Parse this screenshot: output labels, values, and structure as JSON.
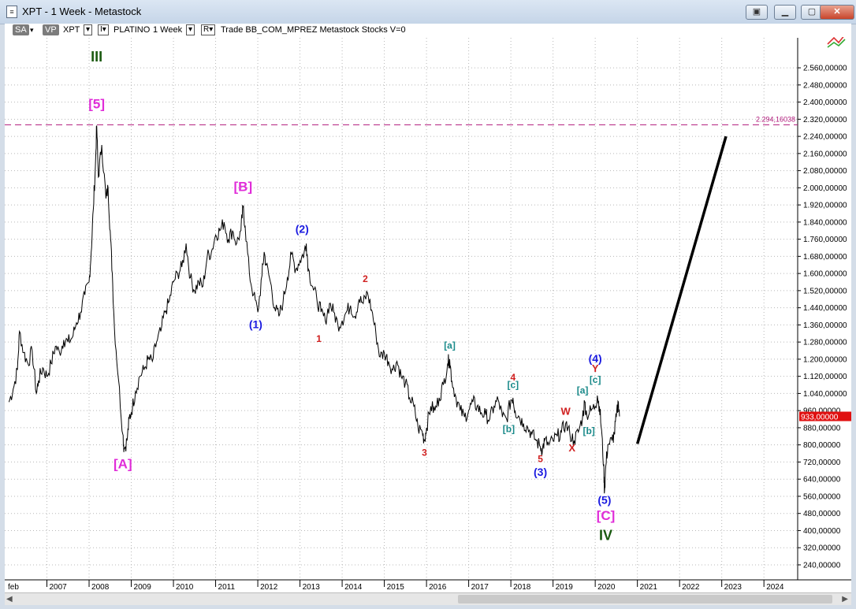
{
  "window": {
    "title": "XPT - 1 Week - Metastock",
    "app_icon": "document-icon",
    "buttons": [
      "restore-icon",
      "minimize-icon",
      "maximize-icon",
      "close-icon"
    ]
  },
  "toolbar": {
    "sa": "SA",
    "vp": "VP",
    "symbol": "XPT",
    "name": "PLATINO",
    "period": "1 Week",
    "r_label": "R",
    "rest": "Trade  BB_COM_MPREZ  Metastock  Stocks  V=0"
  },
  "chart_data": {
    "type": "line",
    "x_labels": [
      "feb",
      "2007",
      "2008",
      "2009",
      "2010",
      "2011",
      "2012",
      "2013",
      "2014",
      "2015",
      "2016",
      "2017",
      "2018",
      "2019",
      "2020",
      "2021",
      "2022",
      "2023",
      "2024"
    ],
    "xlim": [
      2006.0,
      2024.8
    ],
    "ylim": [
      170,
      2700
    ],
    "y_ticks": [
      240,
      320,
      400,
      480,
      560,
      640,
      720,
      800,
      880,
      960,
      1040,
      1120,
      1200,
      1280,
      1360,
      1440,
      1520,
      1600,
      1680,
      1760,
      1840,
      1920,
      2000,
      2080,
      2160,
      2240,
      2320,
      2400,
      2480,
      2560
    ],
    "y_tick_labels": [
      "240,00000",
      "320,00000",
      "400,00000",
      "480,00000",
      "560,00000",
      "640,00000",
      "720,00000",
      "800,00000",
      "880,00000",
      "960,00000",
      "1.040,00000",
      "1.120,00000",
      "1.200,00000",
      "1.280,00000",
      "1.360,00000",
      "1.440,00000",
      "1.520,00000",
      "1.600,00000",
      "1.680,00000",
      "1.760,00000",
      "1.840,00000",
      "2.000,00000",
      "2.080,00000",
      "2.160,00000",
      "2.240,00000",
      "2.320,00000",
      "2.400,00000",
      "2.480,00000",
      "2.560,00000"
    ],
    "y_tick_labels_full": [
      "240,00000",
      "320,00000",
      "400,00000",
      "480,00000",
      "560,00000",
      "640,00000",
      "720,00000",
      "800,00000",
      "880,00000",
      "960,00000",
      "1.040,00000",
      "1.120,00000",
      "1.200,00000",
      "1.280,00000",
      "1.360,00000",
      "1.440,00000",
      "1.520,00000",
      "1.600,00000",
      "1.680,00000",
      "1.760,00000",
      "1.840,00000",
      "1.920,00000",
      "2.000,00000",
      "2.080,00000",
      "2.160,00000",
      "2.240,00000",
      "2.320,00000",
      "2.400,00000",
      "2.480,00000",
      "2.560,00000"
    ],
    "grid": true,
    "series": [
      {
        "values": [
          [
            2006.1,
            1000
          ],
          [
            2006.2,
            1060
          ],
          [
            2006.3,
            1150
          ],
          [
            2006.35,
            1330
          ],
          [
            2006.45,
            1230
          ],
          [
            2006.55,
            1180
          ],
          [
            2006.65,
            1240
          ],
          [
            2006.75,
            1040
          ],
          [
            2006.8,
            1100
          ],
          [
            2006.9,
            1160
          ],
          [
            2007.0,
            1120
          ],
          [
            2007.1,
            1180
          ],
          [
            2007.2,
            1260
          ],
          [
            2007.3,
            1230
          ],
          [
            2007.4,
            1290
          ],
          [
            2007.5,
            1280
          ],
          [
            2007.6,
            1300
          ],
          [
            2007.7,
            1370
          ],
          [
            2007.8,
            1420
          ],
          [
            2007.9,
            1500
          ],
          [
            2008.0,
            1560
          ],
          [
            2008.05,
            1700
          ],
          [
            2008.1,
            1900
          ],
          [
            2008.15,
            2100
          ],
          [
            2008.18,
            2290
          ],
          [
            2008.22,
            2050
          ],
          [
            2008.3,
            2200
          ],
          [
            2008.4,
            1950
          ],
          [
            2008.45,
            2000
          ],
          [
            2008.5,
            1800
          ],
          [
            2008.55,
            1600
          ],
          [
            2008.6,
            1350
          ],
          [
            2008.7,
            1100
          ],
          [
            2008.8,
            850
          ],
          [
            2008.83,
            780
          ],
          [
            2008.9,
            820
          ],
          [
            2008.95,
            920
          ],
          [
            2009.0,
            950
          ],
          [
            2009.1,
            1050
          ],
          [
            2009.2,
            1120
          ],
          [
            2009.3,
            1150
          ],
          [
            2009.4,
            1200
          ],
          [
            2009.5,
            1190
          ],
          [
            2009.6,
            1280
          ],
          [
            2009.7,
            1330
          ],
          [
            2009.8,
            1420
          ],
          [
            2009.9,
            1470
          ],
          [
            2010.0,
            1560
          ],
          [
            2010.1,
            1600
          ],
          [
            2010.2,
            1630
          ],
          [
            2010.3,
            1740
          ],
          [
            2010.4,
            1580
          ],
          [
            2010.5,
            1520
          ],
          [
            2010.6,
            1560
          ],
          [
            2010.7,
            1540
          ],
          [
            2010.8,
            1680
          ],
          [
            2010.9,
            1700
          ],
          [
            2011.0,
            1780
          ],
          [
            2011.1,
            1800
          ],
          [
            2011.2,
            1840
          ],
          [
            2011.3,
            1760
          ],
          [
            2011.4,
            1800
          ],
          [
            2011.5,
            1740
          ],
          [
            2011.6,
            1800
          ],
          [
            2011.65,
            1910
          ],
          [
            2011.7,
            1820
          ],
          [
            2011.8,
            1600
          ],
          [
            2011.9,
            1500
          ],
          [
            2012.0,
            1420
          ],
          [
            2012.1,
            1590
          ],
          [
            2012.15,
            1700
          ],
          [
            2012.2,
            1640
          ],
          [
            2012.3,
            1560
          ],
          [
            2012.4,
            1440
          ],
          [
            2012.5,
            1400
          ],
          [
            2012.6,
            1470
          ],
          [
            2012.7,
            1580
          ],
          [
            2012.8,
            1690
          ],
          [
            2012.9,
            1620
          ],
          [
            2013.0,
            1660
          ],
          [
            2013.1,
            1700
          ],
          [
            2013.15,
            1740
          ],
          [
            2013.2,
            1620
          ],
          [
            2013.3,
            1540
          ],
          [
            2013.4,
            1480
          ],
          [
            2013.5,
            1420
          ],
          [
            2013.6,
            1380
          ],
          [
            2013.7,
            1460
          ],
          [
            2013.8,
            1420
          ],
          [
            2013.9,
            1360
          ],
          [
            2014.0,
            1380
          ],
          [
            2014.1,
            1420
          ],
          [
            2014.2,
            1450
          ],
          [
            2014.3,
            1400
          ],
          [
            2014.4,
            1480
          ],
          [
            2014.5,
            1460
          ],
          [
            2014.6,
            1510
          ],
          [
            2014.7,
            1430
          ],
          [
            2014.8,
            1320
          ],
          [
            2014.9,
            1210
          ],
          [
            2015.0,
            1230
          ],
          [
            2015.1,
            1190
          ],
          [
            2015.2,
            1150
          ],
          [
            2015.3,
            1190
          ],
          [
            2015.4,
            1120
          ],
          [
            2015.5,
            1090
          ],
          [
            2015.6,
            1020
          ],
          [
            2015.7,
            980
          ],
          [
            2015.8,
            880
          ],
          [
            2015.9,
            860
          ],
          [
            2015.95,
            820
          ],
          [
            2016.0,
            880
          ],
          [
            2016.1,
            980
          ],
          [
            2016.2,
            960
          ],
          [
            2016.3,
            1020
          ],
          [
            2016.4,
            1080
          ],
          [
            2016.5,
            1180
          ],
          [
            2016.55,
            1200
          ],
          [
            2016.6,
            1100
          ],
          [
            2016.7,
            1020
          ],
          [
            2016.8,
            960
          ],
          [
            2016.9,
            930
          ],
          [
            2017.0,
            960
          ],
          [
            2017.1,
            1000
          ],
          [
            2017.2,
            980
          ],
          [
            2017.3,
            950
          ],
          [
            2017.4,
            940
          ],
          [
            2017.5,
            920
          ],
          [
            2017.6,
            980
          ],
          [
            2017.7,
            1010
          ],
          [
            2017.8,
            930
          ],
          [
            2017.9,
            920
          ],
          [
            2018.0,
            1010
          ],
          [
            2018.05,
            1020
          ],
          [
            2018.1,
            960
          ],
          [
            2018.2,
            930
          ],
          [
            2018.3,
            900
          ],
          [
            2018.4,
            880
          ],
          [
            2018.5,
            850
          ],
          [
            2018.6,
            820
          ],
          [
            2018.7,
            790
          ],
          [
            2018.75,
            780
          ],
          [
            2018.8,
            820
          ],
          [
            2018.9,
            800
          ],
          [
            2019.0,
            820
          ],
          [
            2019.1,
            840
          ],
          [
            2019.2,
            860
          ],
          [
            2019.3,
            900
          ],
          [
            2019.4,
            850
          ],
          [
            2019.5,
            820
          ],
          [
            2019.6,
            860
          ],
          [
            2019.7,
            930
          ],
          [
            2019.75,
            1000
          ],
          [
            2019.8,
            940
          ],
          [
            2019.9,
            960
          ],
          [
            2020.0,
            980
          ],
          [
            2020.05,
            1030
          ],
          [
            2020.1,
            980
          ],
          [
            2020.15,
            870
          ],
          [
            2020.2,
            700
          ],
          [
            2020.22,
            580
          ],
          [
            2020.25,
            700
          ],
          [
            2020.3,
            800
          ],
          [
            2020.4,
            820
          ],
          [
            2020.45,
            850
          ],
          [
            2020.5,
            930
          ],
          [
            2020.55,
            1000
          ],
          [
            2020.58,
            933
          ]
        ]
      }
    ],
    "projection": {
      "from": [
        2021.0,
        805
      ],
      "to": [
        2023.1,
        2240
      ]
    },
    "reference_line": {
      "value": 2294.16038,
      "label": "2.294,16038",
      "color": "#b0187a"
    },
    "last_price": {
      "value": 933,
      "label": "933,00000",
      "color": "#e01010"
    },
    "annotations": [
      {
        "text": "III",
        "x": 2008.18,
        "y": 2590,
        "color": "#1a5a10",
        "size": 18
      },
      {
        "text": "[5]",
        "x": 2008.18,
        "y": 2370,
        "color": "#e02cd8",
        "size": 17
      },
      {
        "text": "[A]",
        "x": 2008.8,
        "y": 690,
        "color": "#e02cd8",
        "size": 17
      },
      {
        "text": "[B]",
        "x": 2011.65,
        "y": 1985,
        "color": "#e02cd8",
        "size": 17
      },
      {
        "text": "(1)",
        "x": 2011.95,
        "y": 1345,
        "color": "#1a1ae0",
        "size": 14
      },
      {
        "text": "(2)",
        "x": 2013.05,
        "y": 1790,
        "color": "#1a1ae0",
        "size": 14
      },
      {
        "text": "1",
        "x": 2013.45,
        "y": 1280,
        "color": "#d02020",
        "size": 12
      },
      {
        "text": "2",
        "x": 2014.55,
        "y": 1560,
        "color": "#d02020",
        "size": 12
      },
      {
        "text": "3",
        "x": 2015.95,
        "y": 750,
        "color": "#d02020",
        "size": 12
      },
      {
        "text": "[a]",
        "x": 2016.55,
        "y": 1250,
        "color": "#1a8a8a",
        "size": 12
      },
      {
        "text": "4",
        "x": 2018.05,
        "y": 1100,
        "color": "#d02020",
        "size": 12
      },
      {
        "text": "[c]",
        "x": 2018.05,
        "y": 1065,
        "color": "#1a8a8a",
        "size": 12
      },
      {
        "text": "[b]",
        "x": 2017.95,
        "y": 860,
        "color": "#1a8a8a",
        "size": 12
      },
      {
        "text": "5",
        "x": 2018.7,
        "y": 720,
        "color": "#d02020",
        "size": 12
      },
      {
        "text": "(3)",
        "x": 2018.7,
        "y": 655,
        "color": "#1a1ae0",
        "size": 14
      },
      {
        "text": "W",
        "x": 2019.3,
        "y": 940,
        "color": "#d02020",
        "size": 13
      },
      {
        "text": "X",
        "x": 2019.45,
        "y": 770,
        "color": "#d02020",
        "size": 13
      },
      {
        "text": "[a]",
        "x": 2019.7,
        "y": 1040,
        "color": "#1a8a8a",
        "size": 12
      },
      {
        "text": "[b]",
        "x": 2019.85,
        "y": 850,
        "color": "#1a8a8a",
        "size": 12
      },
      {
        "text": "(4)",
        "x": 2020.0,
        "y": 1185,
        "color": "#1a1ae0",
        "size": 14
      },
      {
        "text": "Y",
        "x": 2020.0,
        "y": 1140,
        "color": "#d02020",
        "size": 13
      },
      {
        "text": "[c]",
        "x": 2020.0,
        "y": 1090,
        "color": "#1a8a8a",
        "size": 12
      },
      {
        "text": "(5)",
        "x": 2020.22,
        "y": 525,
        "color": "#1a1ae0",
        "size": 14
      },
      {
        "text": "[C]",
        "x": 2020.25,
        "y": 450,
        "color": "#e02cd8",
        "size": 17
      },
      {
        "text": "IV",
        "x": 2020.25,
        "y": 355,
        "color": "#1a5a10",
        "size": 18
      }
    ]
  },
  "scrollbar": {
    "left_arrow": "◀",
    "right_arrow": "▶"
  }
}
